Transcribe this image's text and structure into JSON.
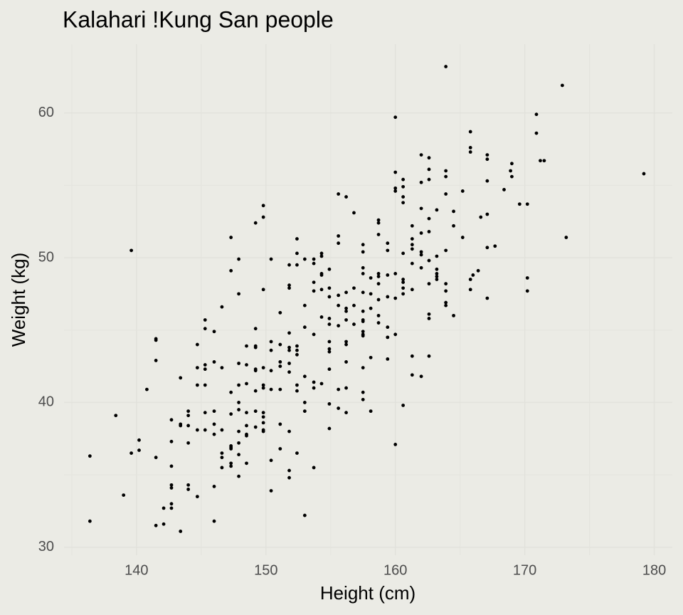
{
  "chart_data": {
    "type": "scatter",
    "title": "Kalahari !Kung San people",
    "xlabel": "Height (cm)",
    "ylabel": "Weight (kg)",
    "color": "#000000",
    "grid": true,
    "xlim": [
      134.4,
      181.4
    ],
    "ylim": [
      29.45,
      64.75
    ],
    "xticks": [
      140,
      150,
      160,
      170,
      180
    ],
    "yticks": [
      30,
      40,
      50,
      60
    ],
    "xminor": [
      135,
      145,
      155,
      165,
      175
    ],
    "yminor": [
      35,
      45,
      55
    ],
    "x": [
      136.4,
      136.4,
      138.4,
      139.0,
      139.6,
      139.6,
      140.2,
      140.2,
      140.8,
      141.5,
      141.5,
      141.5,
      141.5,
      141.5,
      142.1,
      142.1,
      142.7,
      142.7,
      142.7,
      142.7,
      142.7,
      142.7,
      142.7,
      143.4,
      143.4,
      143.4,
      143.4,
      144.0,
      144.0,
      144.0,
      144.0,
      144.0,
      144.0,
      144.7,
      144.7,
      144.7,
      144.7,
      144.7,
      145.3,
      145.3,
      145.3,
      145.3,
      145.3,
      145.3,
      145.3,
      146.0,
      146.0,
      146.0,
      146.0,
      146.0,
      146.0,
      146.0,
      146.6,
      146.6,
      146.6,
      146.6,
      146.6,
      146.6,
      147.3,
      147.3,
      147.3,
      147.3,
      147.3,
      147.3,
      147.3,
      147.3,
      147.3,
      147.9,
      147.9,
      147.9,
      147.9,
      147.9,
      147.9,
      147.9,
      147.9,
      147.9,
      147.9,
      148.5,
      148.5,
      148.5,
      148.5,
      148.5,
      148.5,
      148.5,
      148.5,
      149.2,
      149.2,
      149.2,
      149.2,
      149.2,
      149.2,
      149.2,
      149.2,
      149.2,
      149.8,
      149.8,
      149.8,
      149.8,
      149.8,
      149.8,
      149.8,
      149.8,
      149.8,
      149.8,
      149.8,
      150.4,
      150.4,
      150.4,
      150.4,
      150.4,
      150.4,
      150.4,
      151.1,
      151.1,
      151.1,
      151.1,
      151.1,
      151.1,
      151.1,
      151.8,
      151.8,
      151.8,
      151.8,
      151.8,
      151.8,
      151.8,
      151.8,
      151.8,
      151.8,
      151.8,
      152.4,
      152.4,
      152.4,
      152.4,
      152.4,
      152.4,
      152.4,
      152.4,
      152.4,
      153.0,
      153.0,
      153.0,
      153.0,
      153.0,
      153.0,
      153.0,
      153.7,
      153.7,
      153.7,
      153.7,
      153.7,
      153.7,
      153.7,
      153.7,
      154.3,
      154.3,
      154.3,
      154.3,
      154.3,
      154.3,
      154.3,
      154.9,
      154.9,
      154.9,
      154.9,
      154.9,
      154.9,
      154.9,
      154.9,
      154.9,
      154.9,
      154.9,
      155.6,
      155.6,
      155.6,
      155.6,
      155.6,
      155.6,
      155.6,
      155.6,
      156.2,
      156.2,
      156.2,
      156.2,
      156.2,
      156.2,
      156.2,
      156.2,
      156.2,
      156.2,
      156.8,
      156.8,
      156.8,
      156.8,
      157.5,
      157.5,
      157.5,
      157.5,
      157.5,
      157.5,
      157.5,
      157.5,
      157.5,
      157.5,
      157.5,
      157.5,
      157.5,
      157.5,
      158.1,
      158.1,
      158.1,
      158.1,
      158.1,
      158.7,
      158.7,
      158.7,
      158.7,
      158.7,
      158.7,
      158.7,
      158.7,
      158.7,
      159.4,
      159.4,
      159.4,
      159.4,
      159.4,
      159.4,
      159.4,
      160.0,
      160.0,
      160.0,
      160.0,
      160.0,
      160.0,
      160.0,
      160.0,
      160.6,
      160.6,
      160.6,
      160.6,
      160.6,
      160.6,
      160.6,
      160.6,
      160.6,
      160.6,
      161.3,
      161.3,
      161.3,
      161.3,
      161.3,
      161.3,
      161.3,
      161.3,
      162.0,
      162.0,
      162.0,
      162.0,
      162.0,
      162.0,
      162.0,
      162.0,
      162.6,
      162.6,
      162.6,
      162.6,
      162.6,
      162.6,
      162.6,
      162.6,
      162.6,
      162.6,
      163.2,
      163.2,
      163.2,
      163.2,
      163.2,
      163.2,
      163.9,
      163.9,
      163.9,
      163.9,
      163.9,
      163.9,
      163.9,
      163.9,
      164.5,
      164.5,
      164.5,
      165.2,
      165.2,
      165.8,
      165.8,
      165.8,
      165.8,
      165.8,
      166.0,
      166.4,
      166.6,
      167.1,
      167.1,
      167.1,
      167.1,
      167.1,
      167.1,
      167.7,
      168.4,
      168.9,
      169.0,
      169.0,
      169.6,
      170.2,
      170.2,
      170.2,
      170.9,
      170.9,
      171.2,
      172.9,
      171.5,
      173.2,
      179.2,
      163.9
    ],
    "y": [
      36.3,
      31.8,
      39.1,
      33.6,
      50.5,
      36.5,
      37.4,
      36.7,
      40.9,
      36.2,
      44.4,
      42.9,
      44.3,
      31.5,
      32.7,
      31.6,
      38.8,
      37.3,
      35.6,
      34.3,
      34.1,
      33.0,
      32.7,
      41.7,
      38.5,
      38.4,
      31.1,
      39.4,
      39.1,
      38.4,
      37.2,
      34.3,
      34.0,
      44.0,
      42.4,
      41.2,
      38.1,
      33.5,
      45.7,
      45.1,
      42.6,
      42.3,
      41.2,
      39.3,
      38.1,
      44.9,
      42.8,
      39.4,
      38.5,
      37.8,
      34.2,
      31.8,
      46.6,
      42.4,
      38.1,
      36.5,
      35.5,
      36.2,
      51.4,
      49.1,
      39.2,
      40.7,
      37.0,
      36.9,
      36.8,
      35.8,
      35.6,
      49.9,
      47.5,
      42.7,
      41.2,
      40.0,
      39.5,
      38.0,
      37.2,
      36.4,
      34.9,
      43.9,
      42.6,
      41.3,
      39.3,
      38.4,
      37.8,
      37.7,
      35.8,
      52.4,
      45.1,
      43.9,
      42.3,
      42.2,
      40.8,
      39.4,
      38.3,
      43.8,
      53.6,
      52.8,
      47.8,
      42.4,
      41.2,
      41.0,
      39.3,
      39.0,
      38.6,
      38.1,
      38.0,
      49.9,
      44.2,
      43.6,
      42.2,
      40.9,
      36.0,
      33.9,
      46.2,
      44.0,
      42.8,
      42.5,
      40.9,
      38.5,
      36.8,
      49.5,
      48.1,
      47.9,
      44.8,
      43.8,
      43.6,
      42.7,
      42.1,
      38.0,
      35.3,
      34.8,
      43.9,
      43.6,
      43.3,
      41.2,
      40.8,
      36.5,
      51.3,
      50.3,
      49.5,
      49.9,
      46.7,
      45.2,
      41.8,
      40.0,
      39.4,
      32.2,
      49.9,
      49.6,
      48.3,
      47.7,
      44.7,
      41.4,
      41.0,
      35.5,
      50.3,
      50.1,
      48.9,
      47.8,
      45.9,
      41.3,
      48.8,
      49.2,
      47.9,
      47.3,
      45.8,
      45.4,
      44.2,
      43.7,
      43.5,
      42.3,
      39.9,
      38.2,
      54.4,
      51.0,
      51.5,
      47.4,
      46.7,
      45.3,
      40.9,
      39.6,
      54.2,
      47.6,
      46.5,
      46.3,
      45.7,
      44.2,
      44.0,
      42.8,
      41.0,
      39.3,
      53.1,
      46.7,
      45.4,
      47.9,
      50.9,
      50.4,
      49.3,
      48.9,
      47.6,
      46.3,
      45.7,
      45.6,
      44.9,
      44.7,
      44.6,
      42.4,
      40.7,
      40.2,
      48.6,
      47.5,
      46.5,
      43.1,
      39.4,
      52.6,
      52.4,
      51.6,
      48.7,
      48.2,
      47.1,
      46.0,
      45.5,
      48.9,
      51.0,
      50.5,
      48.8,
      47.3,
      45.2,
      44.5,
      43.0,
      59.7,
      55.9,
      54.8,
      54.6,
      48.9,
      47.2,
      44.7,
      37.1,
      55.4,
      54.9,
      54.2,
      53.8,
      50.3,
      48.5,
      47.9,
      47.5,
      39.8,
      48.3,
      52.2,
      51.3,
      50.9,
      50.6,
      49.6,
      43.2,
      41.9,
      47.8,
      57.1,
      55.2,
      53.4,
      51.7,
      50.4,
      50.2,
      49.3,
      41.8,
      56.9,
      56.1,
      55.4,
      52.7,
      51.8,
      49.8,
      48.2,
      46.1,
      45.8,
      43.2,
      53.3,
      50.1,
      49.2,
      48.9,
      48.7,
      48.5,
      56.0,
      55.6,
      54.4,
      50.5,
      48.2,
      47.7,
      46.9,
      46.7,
      53.2,
      52.2,
      46.0,
      54.6,
      51.4,
      58.7,
      57.6,
      57.3,
      48.5,
      47.8,
      48.8,
      49.1,
      52.8,
      57.1,
      56.8,
      55.3,
      50.7,
      47.2,
      53.0,
      50.8,
      54.7,
      56.0,
      55.6,
      56.5,
      53.7,
      53.7,
      48.6,
      47.7,
      59.9,
      58.6,
      56.7,
      61.9,
      56.7,
      51.4,
      55.8,
      63.2
    ]
  }
}
